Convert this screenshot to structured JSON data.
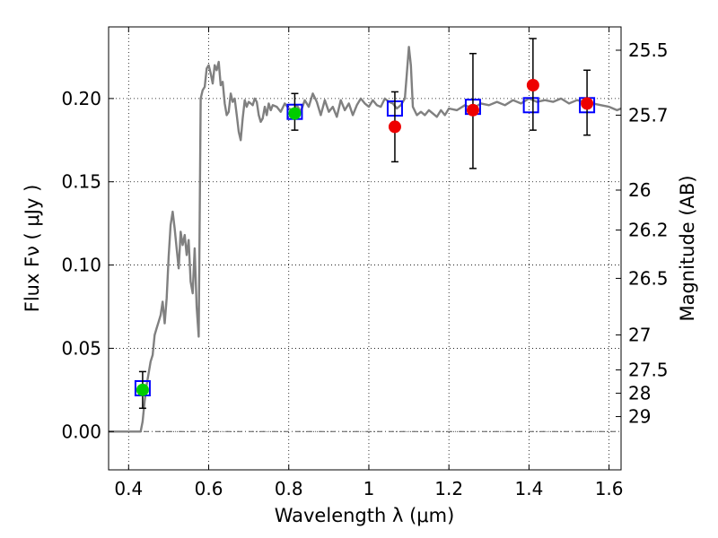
{
  "chart_data": {
    "type": "scatter",
    "title": "",
    "xlabel": "Wavelength  λ (μm)",
    "ylabel": "Flux  Fν  ( μJy )",
    "ylabel_right": "Magnitude (AB)",
    "xlim": [
      0.35,
      1.63
    ],
    "ylim": [
      -0.023,
      0.243
    ],
    "grid": true,
    "x_ticks": [
      0.4,
      0.6,
      0.8,
      1.0,
      1.2,
      1.4,
      1.6
    ],
    "x_tick_labels": [
      "0.4",
      "0.6",
      "0.8",
      "1",
      "1.2",
      "1.4",
      "1.6"
    ],
    "y_ticks": [
      0.0,
      0.05,
      0.1,
      0.15,
      0.2
    ],
    "y_tick_labels": [
      "0.00",
      "0.05",
      "0.10",
      "0.15",
      "0.20"
    ],
    "right_ticks": [
      {
        "label": "25.5",
        "flux": 0.229
      },
      {
        "label": "25.7",
        "flux": 0.19
      },
      {
        "label": "26",
        "flux": 0.145
      },
      {
        "label": "26.2",
        "flux": 0.121
      },
      {
        "label": "26.5",
        "flux": 0.092
      },
      {
        "label": "27",
        "flux": 0.058
      },
      {
        "label": "27.5",
        "flux": 0.037
      },
      {
        "label": "28",
        "flux": 0.023
      },
      {
        "label": "29",
        "flux": 0.009
      }
    ],
    "reference_line_y": 0.0,
    "spectrum": {
      "color": "#808080",
      "x": [
        0.35,
        0.43,
        0.435,
        0.44,
        0.445,
        0.45,
        0.455,
        0.46,
        0.465,
        0.47,
        0.475,
        0.48,
        0.485,
        0.49,
        0.495,
        0.5,
        0.505,
        0.51,
        0.515,
        0.52,
        0.525,
        0.53,
        0.535,
        0.54,
        0.545,
        0.55,
        0.555,
        0.56,
        0.565,
        0.57,
        0.575,
        0.58,
        0.585,
        0.59,
        0.595,
        0.6,
        0.605,
        0.61,
        0.615,
        0.62,
        0.625,
        0.63,
        0.635,
        0.64,
        0.645,
        0.65,
        0.655,
        0.66,
        0.665,
        0.67,
        0.675,
        0.68,
        0.685,
        0.69,
        0.695,
        0.7,
        0.705,
        0.71,
        0.715,
        0.72,
        0.725,
        0.73,
        0.735,
        0.74,
        0.745,
        0.75,
        0.755,
        0.76,
        0.77,
        0.78,
        0.79,
        0.8,
        0.81,
        0.82,
        0.83,
        0.84,
        0.85,
        0.86,
        0.87,
        0.88,
        0.89,
        0.9,
        0.91,
        0.92,
        0.93,
        0.94,
        0.95,
        0.96,
        0.97,
        0.98,
        0.99,
        1.0,
        1.01,
        1.02,
        1.03,
        1.04,
        1.05,
        1.06,
        1.07,
        1.08,
        1.09,
        1.095,
        1.1,
        1.105,
        1.11,
        1.12,
        1.13,
        1.14,
        1.15,
        1.16,
        1.17,
        1.18,
        1.19,
        1.2,
        1.22,
        1.24,
        1.26,
        1.28,
        1.3,
        1.32,
        1.34,
        1.36,
        1.38,
        1.4,
        1.42,
        1.44,
        1.46,
        1.48,
        1.5,
        1.52,
        1.54,
        1.56,
        1.58,
        1.6,
        1.62,
        1.63
      ],
      "y": [
        0.0,
        0.0,
        0.006,
        0.018,
        0.028,
        0.035,
        0.042,
        0.046,
        0.058,
        0.062,
        0.066,
        0.07,
        0.078,
        0.065,
        0.08,
        0.105,
        0.124,
        0.132,
        0.122,
        0.11,
        0.098,
        0.12,
        0.112,
        0.118,
        0.106,
        0.115,
        0.09,
        0.083,
        0.11,
        0.075,
        0.057,
        0.2,
        0.205,
        0.207,
        0.218,
        0.22,
        0.215,
        0.209,
        0.22,
        0.217,
        0.222,
        0.208,
        0.21,
        0.197,
        0.19,
        0.192,
        0.203,
        0.198,
        0.2,
        0.19,
        0.18,
        0.175,
        0.188,
        0.199,
        0.195,
        0.198,
        0.197,
        0.196,
        0.2,
        0.198,
        0.19,
        0.186,
        0.188,
        0.195,
        0.19,
        0.197,
        0.193,
        0.196,
        0.195,
        0.192,
        0.197,
        0.194,
        0.193,
        0.196,
        0.192,
        0.199,
        0.195,
        0.203,
        0.198,
        0.19,
        0.199,
        0.192,
        0.195,
        0.189,
        0.199,
        0.193,
        0.197,
        0.19,
        0.196,
        0.2,
        0.197,
        0.195,
        0.199,
        0.196,
        0.195,
        0.2,
        0.198,
        0.197,
        0.194,
        0.196,
        0.2,
        0.215,
        0.231,
        0.22,
        0.195,
        0.19,
        0.192,
        0.19,
        0.193,
        0.191,
        0.189,
        0.193,
        0.19,
        0.194,
        0.193,
        0.196,
        0.194,
        0.197,
        0.196,
        0.198,
        0.196,
        0.199,
        0.197,
        0.2,
        0.198,
        0.199,
        0.198,
        0.2,
        0.197,
        0.199,
        0.198,
        0.197,
        0.196,
        0.195,
        0.193,
        0.194
      ]
    },
    "series": [
      {
        "name": "",
        "marker": "open-square",
        "color": "#0000ff",
        "x": [
          0.435,
          0.815,
          1.065,
          1.26,
          1.405,
          1.545
        ],
        "y": [
          0.026,
          0.192,
          0.194,
          0.195,
          0.196,
          0.196
        ]
      },
      {
        "name": "",
        "marker": "circle",
        "color": "#00cc00",
        "x": [
          0.435,
          0.815
        ],
        "y": [
          0.025,
          0.191
        ],
        "err_low": [
          0.014,
          0.181
        ],
        "err_high": [
          0.036,
          0.203
        ]
      },
      {
        "name": "",
        "marker": "circle",
        "color": "#ee0000",
        "x": [
          1.065,
          1.26,
          1.41,
          1.545
        ],
        "y": [
          0.183,
          0.193,
          0.208,
          0.197
        ],
        "err_low": [
          0.162,
          0.158,
          0.181,
          0.178
        ],
        "err_high": [
          0.204,
          0.227,
          0.236,
          0.217
        ]
      }
    ]
  }
}
